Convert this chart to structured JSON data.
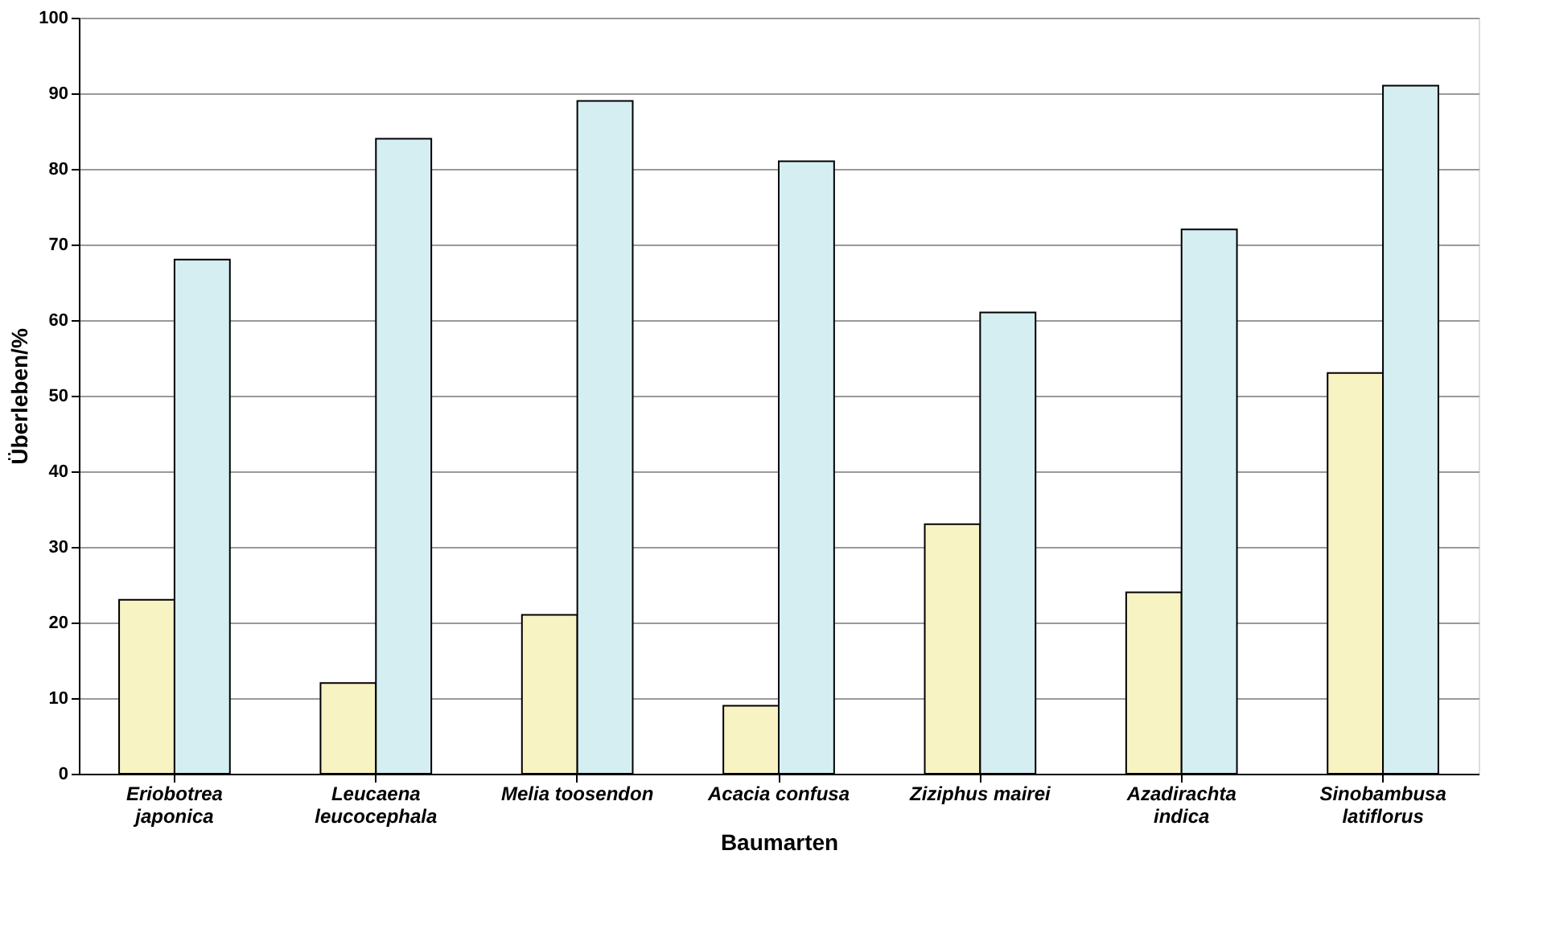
{
  "chart_data": {
    "type": "bar",
    "xlabel": "Baumarten",
    "ylabel": "Überleben/%",
    "categories": [
      "Eriobotrea\njaponica",
      "Leucaena\nleucocephala",
      "Melia toosendon",
      "Acacia confusa",
      "Ziziphus mairei",
      "Azadirachta\nindica",
      "Sinobambusa\nlatiflorus"
    ],
    "series": [
      {
        "color": "#f7f3c3",
        "values": [
          23,
          12,
          21,
          9,
          33,
          24,
          53
        ]
      },
      {
        "color": "#d5eef2",
        "values": [
          68,
          84,
          89,
          81,
          61,
          72,
          91
        ]
      }
    ],
    "ylim": [
      0,
      100
    ],
    "yticks": [
      0,
      10,
      20,
      30,
      40,
      50,
      60,
      70,
      80,
      90,
      100
    ],
    "grid": "y",
    "legend": false
  }
}
